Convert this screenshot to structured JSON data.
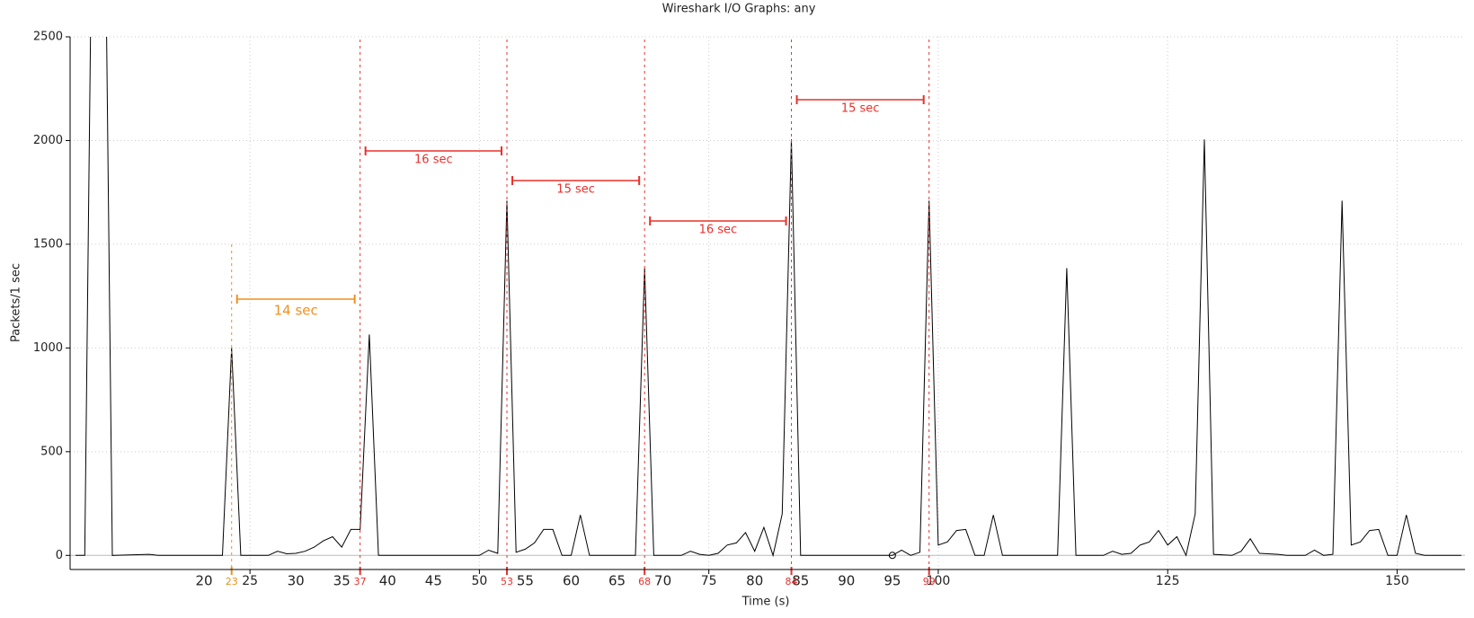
{
  "chart_data": {
    "type": "line",
    "title": "Wireshark I/O Graphs: any",
    "ylabel": "Packets/1 sec",
    "xlabel": "Time (s)",
    "x": [
      6,
      7,
      8,
      9,
      10,
      14,
      15,
      22,
      23,
      24,
      27,
      28,
      29,
      30,
      31,
      32,
      33,
      34,
      35,
      36,
      37,
      38,
      39,
      50,
      51,
      52,
      53,
      54,
      55,
      56,
      57,
      58,
      59,
      60,
      61,
      62,
      67,
      68,
      69,
      72,
      73,
      74,
      75,
      76,
      77,
      78,
      79,
      80,
      81,
      82,
      83,
      84,
      85,
      95,
      96,
      97,
      98,
      99,
      100,
      101,
      102,
      103,
      104,
      105,
      106,
      107,
      113,
      114,
      115,
      118,
      119,
      120,
      121,
      122,
      123,
      124,
      125,
      126,
      127,
      128,
      129,
      130,
      132,
      133,
      134,
      135,
      137,
      138,
      140,
      141,
      142,
      143,
      144,
      145,
      146,
      147,
      148,
      149,
      150,
      151,
      152,
      153,
      157
    ],
    "values": [
      0,
      0,
      4000,
      4000,
      0,
      5,
      0,
      0,
      1000,
      0,
      0,
      20,
      8,
      10,
      20,
      40,
      70,
      90,
      40,
      125,
      125,
      1065,
      0,
      0,
      25,
      10,
      1710,
      15,
      30,
      60,
      125,
      125,
      0,
      0,
      195,
      0,
      0,
      1385,
      0,
      0,
      20,
      5,
      0,
      10,
      50,
      60,
      110,
      20,
      135,
      0,
      200,
      2005,
      0,
      0,
      25,
      0,
      15,
      1710,
      50,
      65,
      120,
      125,
      0,
      0,
      195,
      0,
      0,
      1385,
      0,
      0,
      20,
      5,
      10,
      50,
      65,
      120,
      50,
      90,
      0,
      200,
      2005,
      5,
      0,
      20,
      80,
      10,
      5,
      0,
      0,
      25,
      0,
      5,
      1710,
      50,
      65,
      120,
      125,
      0,
      0,
      195,
      10,
      0,
      0
    ],
    "color": "#000000",
    "xlim": [
      5.4,
      157.4
    ],
    "ylim": [
      -68,
      2500
    ],
    "xticks": [
      25,
      50,
      75,
      100,
      125,
      150
    ],
    "yticks": [
      0,
      500,
      1000,
      1500,
      2000,
      2500
    ],
    "extra_xticks": [
      20,
      30,
      35,
      40,
      45,
      55,
      60,
      65,
      70,
      80,
      85,
      90,
      95
    ],
    "grid": true,
    "markers": [
      {
        "value": 23,
        "color": "#f0901e"
      },
      {
        "value": 37,
        "color": "#e8302c"
      },
      {
        "value": 53,
        "color": "#e8302c"
      },
      {
        "value": 68,
        "color": "#e8302c"
      },
      {
        "value": 84,
        "color": "#e8302c"
      },
      {
        "value": 99,
        "color": "#e8302c"
      }
    ],
    "intervals": [
      {
        "label": "14 sec",
        "color": "#f0901e"
      },
      {
        "label": "16 sec",
        "color": "#e8302c"
      },
      {
        "label": "15 sec",
        "color": "#e8302c"
      },
      {
        "label": "16 sec",
        "color": "#e8302c"
      },
      {
        "label": "15 sec",
        "color": "#e8302c"
      }
    ]
  }
}
